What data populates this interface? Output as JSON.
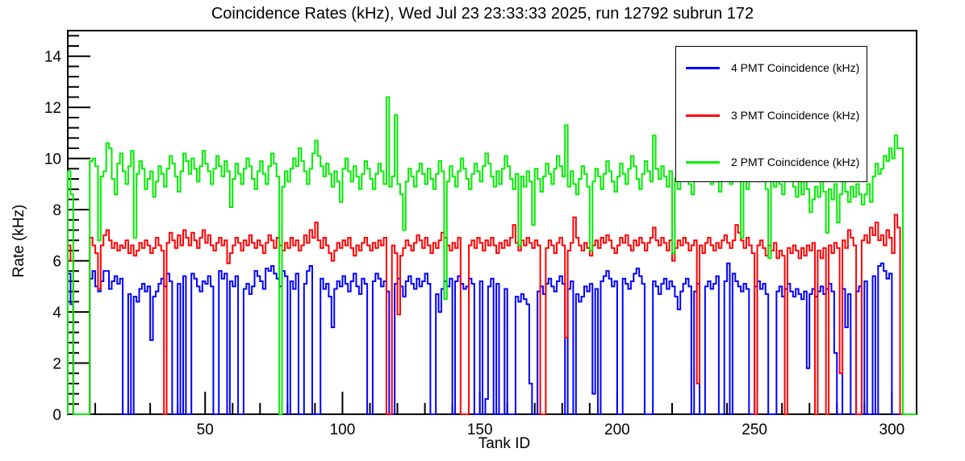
{
  "chart_data": {
    "type": "line",
    "style": "step-histogram",
    "title": "Coincidence Rates (kHz), Wed Jul 23 23:33:33 2025, run 12792 subrun 172",
    "xlabel": "Tank ID",
    "ylabel": "Rate (kHz)",
    "xlim": [
      0,
      309
    ],
    "ylim": [
      0,
      15
    ],
    "x_major_ticks": [
      50,
      100,
      150,
      200,
      250,
      300
    ],
    "x_minor_step": 10,
    "y_major_ticks": [
      0,
      2,
      4,
      6,
      8,
      10,
      12,
      14
    ],
    "y_minor_step": 0.4,
    "bin_width": 1,
    "grid": false,
    "legend_position": "top-right",
    "frame_color": "#000000",
    "background_color": "#ffffff",
    "series": [
      {
        "name": "4 PMT Coincidence (kHz)",
        "color": "#0000ff",
        "values": [
          5.5,
          4.3,
          0,
          0,
          0,
          0,
          0,
          0,
          5.3,
          5.6,
          5.0,
          4.8,
          5.2,
          5.6,
          5.6,
          4.9,
          5.2,
          5.4,
          5.1,
          5.3,
          0,
          0,
          4.7,
          0,
          4.6,
          4.4,
          4.9,
          5.1,
          4.8,
          5.0,
          2.9,
          4.6,
          4.8,
          5.1,
          5.3,
          5.0,
          5.5,
          5.2,
          0,
          0,
          5.1,
          0,
          5.4,
          0,
          0,
          5.5,
          5.3,
          5.0,
          4.8,
          5.2,
          5.1,
          5.4,
          5.0,
          0,
          0,
          5.6,
          5.3,
          5.5,
          0,
          5.2,
          5.0,
          5.4,
          0,
          0,
          4.9,
          5.1,
          4.7,
          5.0,
          5.6,
          5.4,
          5.2,
          4.9,
          5.7,
          5.6,
          5.8,
          5.5,
          5.3,
          5.0,
          5.6,
          5.4,
          0,
          5.2,
          4.9,
          5.5,
          0,
          0,
          5.1,
          5.6,
          5.8,
          0,
          0,
          0,
          5.3,
          4.9,
          5.1,
          4.6,
          3.4,
          4.9,
          5.2,
          5.0,
          5.4,
          5.1,
          4.8,
          5.2,
          5.5,
          5.0,
          4.7,
          5.3,
          5.1,
          0,
          0,
          5.2,
          5.5,
          5.3,
          5.0,
          5.2,
          4.8,
          0,
          0,
          5.1,
          5.3,
          5.0,
          4.6,
          5.2,
          5.4,
          5.1,
          4.9,
          5.3,
          5.0,
          5.2,
          5.5,
          5.1,
          0,
          0,
          4.7,
          4.0,
          4.9,
          5.2,
          5.0,
          5.3,
          0,
          5.2,
          5.4,
          5.1,
          4.9,
          5.0,
          5.3,
          5.1,
          0,
          0,
          5.2,
          0,
          0.6,
          5.0,
          5.3,
          0,
          5.1,
          0,
          0,
          4.9,
          0,
          0,
          0,
          4.6,
          4.4,
          4.7,
          4.5,
          4.3,
          1.2,
          0,
          0,
          4.8,
          5.0,
          4.7,
          5.1,
          5.3,
          5.0,
          4.8,
          5.2,
          5.4,
          5.1,
          0,
          4.9,
          5.2,
          0,
          4.7,
          4.4,
          4.6,
          5.0,
          4.8,
          5.1,
          0.8,
          4.9,
          0,
          5.2,
          5.4,
          5.6,
          5.3,
          5.0,
          5.2,
          0,
          0,
          5.3,
          5.1,
          4.9,
          5.2,
          5.5,
          5.7,
          5.4,
          5.1,
          0,
          0,
          0,
          5.2,
          5.0,
          4.7,
          5.1,
          5.3,
          4.9,
          5.2,
          5.0,
          4.6,
          4.1,
          4.8,
          5.1,
          5.3,
          5.0,
          0,
          4.8,
          5.1,
          0,
          0,
          5.0,
          5.2,
          4.9,
          5.1,
          5.4,
          0,
          0,
          5.2,
          5.9,
          0,
          5.5,
          5.2,
          5.0,
          4.8,
          5.1,
          4.9,
          0,
          0,
          5.0,
          5.2,
          4.9,
          5.1,
          4.7,
          0,
          0,
          0,
          4.8,
          5.0,
          4.6,
          4.9,
          5.1,
          4.8,
          4.6,
          4.9,
          4.7,
          4.5,
          4.8,
          1.8,
          4.7,
          4.9,
          4.6,
          4.8,
          5.0,
          4.7,
          4.9,
          5.1,
          4.8,
          2.4,
          0,
          0,
          4.9,
          3.4,
          4.7,
          0,
          0,
          4.8,
          5.0,
          0,
          5.2,
          0,
          0,
          5.4,
          0,
          5.8,
          5.9,
          5.6,
          5.3,
          5.5,
          0,
          0,
          0,
          0,
          0,
          0,
          0,
          0,
          0
        ]
      },
      {
        "name": "3 PMT Coincidence (kHz)",
        "color": "#ff0000",
        "values": [
          6.6,
          6.0,
          0,
          0,
          0,
          0,
          0,
          0,
          6.9,
          6.6,
          6.3,
          4.9,
          6.6,
          7.0,
          7.2,
          6.8,
          6.5,
          6.7,
          6.4,
          6.6,
          6.5,
          6.8,
          6.3,
          6.6,
          6.2,
          6.4,
          6.7,
          6.5,
          6.8,
          6.6,
          6.3,
          6.5,
          6.9,
          6.6,
          6.4,
          0,
          6.7,
          7.1,
          6.8,
          6.5,
          7.0,
          6.6,
          7.2,
          6.9,
          6.6,
          7.1,
          6.8,
          6.5,
          6.9,
          7.2,
          6.7,
          7.0,
          6.6,
          6.4,
          6.7,
          6.9,
          6.6,
          6.8,
          5.9,
          6.3,
          6.6,
          6.9,
          6.7,
          6.4,
          6.8,
          6.6,
          7.0,
          6.7,
          6.5,
          6.8,
          6.6,
          6.3,
          6.7,
          7.0,
          6.8,
          6.5,
          6.9,
          6.6,
          6.4,
          6.7,
          6.5,
          6.9,
          6.6,
          6.8,
          6.4,
          6.6,
          7.0,
          6.7,
          7.2,
          6.9,
          7.5,
          6.8,
          6.5,
          6.9,
          6.6,
          6.3,
          6.0,
          6.4,
          6.7,
          6.5,
          6.8,
          6.6,
          6.9,
          6.5,
          6.2,
          6.6,
          6.4,
          6.7,
          6.9,
          6.6,
          6.4,
          6.7,
          6.5,
          6.8,
          6.6,
          6.9,
          0,
          0,
          6.6,
          6.3,
          3.9,
          6.2,
          6.5,
          6.8,
          6.6,
          6.4,
          6.7,
          7.0,
          6.8,
          6.5,
          6.9,
          6.6,
          6.3,
          6.7,
          6.5,
          6.8,
          7.1,
          6.9,
          6.6,
          6.4,
          6.7,
          6.5,
          6.9,
          0,
          0,
          0,
          6.6,
          6.8,
          6.5,
          6.9,
          6.7,
          6.4,
          6.8,
          6.6,
          6.9,
          6.6,
          6.3,
          6.7,
          6.5,
          6.8,
          6.6,
          6.9,
          7.4,
          6.7,
          6.4,
          6.8,
          6.6,
          6.9,
          6.7,
          6.5,
          6.8,
          6.6,
          0,
          0,
          6.5,
          6.8,
          6.6,
          6.3,
          6.7,
          6.9,
          6.6,
          3.0,
          6.4,
          6.7,
          7.7,
          6.9,
          6.6,
          6.4,
          6.7,
          6.5,
          6.2,
          6.6,
          6.8,
          6.5,
          6.9,
          6.7,
          7.0,
          6.8,
          6.5,
          6.3,
          6.6,
          6.9,
          6.7,
          7.0,
          6.6,
          6.4,
          6.8,
          6.6,
          6.9,
          6.7,
          6.4,
          6.7,
          6.9,
          7.3,
          6.8,
          6.6,
          6.9,
          6.7,
          6.4,
          6.8,
          6.0,
          6.5,
          6.8,
          6.6,
          6.9,
          6.7,
          6.4,
          6.6,
          6.8,
          1.2,
          6.6,
          6.3,
          6.7,
          6.9,
          6.6,
          6.4,
          6.7,
          6.5,
          6.8,
          7.0,
          6.7,
          6.5,
          6.8,
          7.4,
          7.1,
          6.8,
          6.5,
          6.9,
          6.6,
          6.3,
          0,
          6.6,
          6.8,
          6.5,
          6.2,
          6.6,
          6.4,
          6.7,
          6.1,
          6.4,
          6.2,
          0,
          6.5,
          6.3,
          6.6,
          6.4,
          6.1,
          6.5,
          6.2,
          6.6,
          6.4,
          6.7,
          0,
          6.4,
          6.1,
          6.5,
          0,
          6.6,
          6.3,
          6.7,
          6.5,
          1.6,
          6.8,
          6.5,
          7.2,
          6.9,
          6.6,
          0,
          0,
          6.8,
          7.0,
          6.7,
          7.3,
          7.0,
          7.5,
          6.8,
          7.0,
          6.6,
          7.2,
          6.9,
          6.3,
          7.8,
          7.3,
          0,
          0,
          0,
          0,
          0,
          0
        ]
      },
      {
        "name": "2 PMT Coincidence (kHz)",
        "color": "#00ee00",
        "values": [
          9.5,
          8.6,
          0,
          0,
          0,
          0,
          0,
          0,
          9.9,
          10.0,
          9.7,
          6.8,
          9.3,
          9.5,
          10.6,
          10.4,
          9.2,
          8.6,
          9.8,
          10.2,
          9.5,
          9.0,
          9.7,
          10.3,
          6.9,
          9.4,
          9.9,
          9.6,
          8.8,
          9.2,
          9.5,
          8.5,
          9.1,
          9.7,
          9.4,
          8.9,
          9.6,
          10.1,
          9.8,
          9.3,
          8.7,
          9.5,
          10.2,
          9.9,
          9.4,
          10.0,
          9.6,
          9.1,
          9.7,
          10.3,
          9.8,
          9.5,
          9.0,
          9.6,
          10.1,
          9.7,
          9.3,
          9.9,
          9.5,
          8.1,
          9.2,
          9.8,
          9.4,
          9.0,
          9.6,
          10.0,
          9.7,
          9.2,
          8.8,
          9.5,
          9.9,
          9.4,
          9.0,
          9.7,
          10.2,
          9.8,
          9.3,
          0,
          8.9,
          9.5,
          9.1,
          9.6,
          10.0,
          9.7,
          10.4,
          9.9,
          9.5,
          9.0,
          9.6,
          10.2,
          10.7,
          10.1,
          9.7,
          9.3,
          9.8,
          9.4,
          8.9,
          9.5,
          9.1,
          8.3,
          9.6,
          10.0,
          9.5,
          9.1,
          9.7,
          9.3,
          8.8,
          9.4,
          9.9,
          9.6,
          9.2,
          8.8,
          9.4,
          9.8,
          9.5,
          9.0,
          12.4,
          8.9,
          9.3,
          11.7,
          9.0,
          8.6,
          7.2,
          9.1,
          9.6,
          9.3,
          8.9,
          9.5,
          9.8,
          9.4,
          9.0,
          9.6,
          9.2,
          8.8,
          9.4,
          9.9,
          9.5,
          4.5,
          9.1,
          9.7,
          9.3,
          8.9,
          9.5,
          10.0,
          9.6,
          9.2,
          8.8,
          9.4,
          9.8,
          9.5,
          9.1,
          9.7,
          10.2,
          9.8,
          9.3,
          8.9,
          9.5,
          9.0,
          9.6,
          10.1,
          9.7,
          9.2,
          8.8,
          9.4,
          6.6,
          9.3,
          8.9,
          9.5,
          9.1,
          7.4,
          9.6,
          9.2,
          8.7,
          9.3,
          9.8,
          9.4,
          9.0,
          9.6,
          10.1,
          9.7,
          9.3,
          11.3,
          8.9,
          9.5,
          9.0,
          8.6,
          9.2,
          9.7,
          9.4,
          8.9,
          6.4,
          9.1,
          9.6,
          9.3,
          8.8,
          9.4,
          9.9,
          9.5,
          9.1,
          8.7,
          9.3,
          9.8,
          9.4,
          9.0,
          9.6,
          10.1,
          9.7,
          9.2,
          8.8,
          9.4,
          9.9,
          9.5,
          9.1,
          10.9,
          9.6,
          9.2,
          9.7,
          9.3,
          8.9,
          9.5,
          6.3,
          9.2,
          8.8,
          9.4,
          9.8,
          9.5,
          9.0,
          8.6,
          9.2,
          9.6,
          9.3,
          10.5,
          9.8,
          9.4,
          9.0,
          9.5,
          9.1,
          8.7,
          9.3,
          9.8,
          9.4,
          9.0,
          9.6,
          10.0,
          9.7,
          6.9,
          9.2,
          8.8,
          9.4,
          9.9,
          9.5,
          9.1,
          9.6,
          9.2,
          8.8,
          6.1,
          9.3,
          8.9,
          9.5,
          9.0,
          8.6,
          9.2,
          9.7,
          9.3,
          8.9,
          8.5,
          9.1,
          8.6,
          9.2,
          8.8,
          7.9,
          8.4,
          8.9,
          8.5,
          9.1,
          8.7,
          7.1,
          8.8,
          8.4,
          9.0,
          7.5,
          8.6,
          9.1,
          8.7,
          8.3,
          8.9,
          8.5,
          9.0,
          8.6,
          8.2,
          8.6,
          9.0,
          8.3,
          9.3,
          9.8,
          9.4,
          9.6,
          10.1,
          9.9,
          10.4,
          10.0,
          10.9,
          10.4,
          10.4,
          0,
          0,
          0,
          0,
          0
        ]
      }
    ]
  }
}
